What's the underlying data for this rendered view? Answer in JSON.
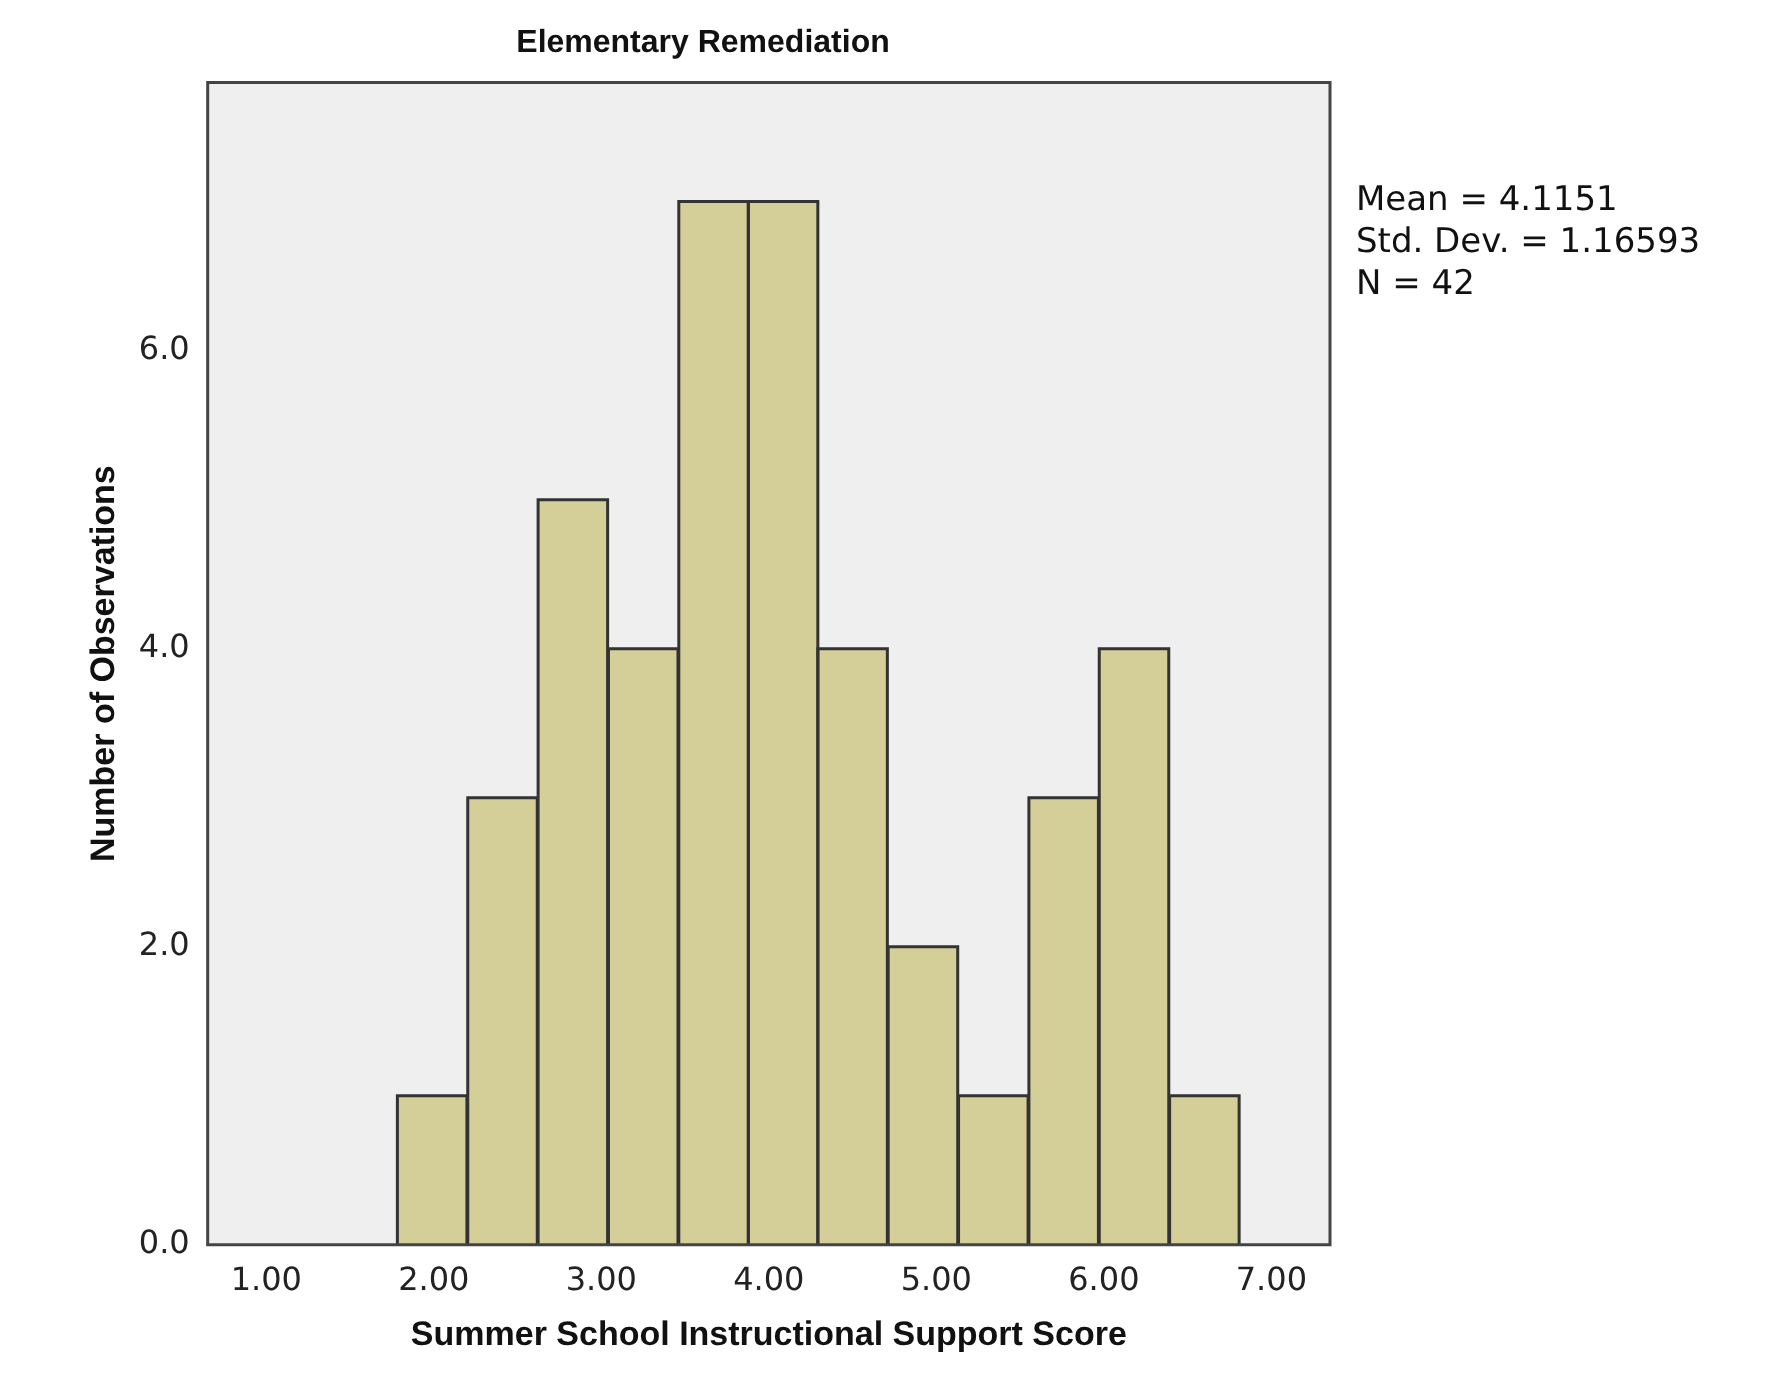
{
  "chart_data": {
    "type": "histogram",
    "title": "Elementary Remediation",
    "xlabel": "Summer School Instructional Support Score",
    "ylabel": "Number of Observations",
    "bins": [
      1.78,
      2.2,
      2.62,
      3.04,
      3.46,
      3.88,
      4.29,
      4.71,
      5.13,
      5.55,
      5.97,
      6.39,
      6.81
    ],
    "values": [
      1,
      3,
      5,
      4,
      7,
      7,
      4,
      2,
      1,
      3,
      4,
      1
    ],
    "color": "#d4cf99",
    "xlim": [
      0.65,
      7.35
    ],
    "xticks": [
      {
        "value": 1,
        "label": "1.00"
      },
      {
        "value": 2,
        "label": "2.00"
      },
      {
        "value": 3,
        "label": "3.00"
      },
      {
        "value": 4,
        "label": "4.00"
      },
      {
        "value": 5,
        "label": "5.00"
      },
      {
        "value": 6,
        "label": "6.00"
      },
      {
        "value": 7,
        "label": "7.00"
      }
    ],
    "ylim": [
      0,
      7.8
    ],
    "yticks": [
      {
        "value": 0,
        "label": "0.0"
      },
      {
        "value": 2,
        "label": "2.0"
      },
      {
        "value": 4,
        "label": "4.0"
      },
      {
        "value": 6,
        "label": "6.0"
      }
    ],
    "grid": false,
    "legend": false,
    "annotations": [
      "Mean = 4.1151",
      "Std. Dev. = 1.16593",
      "N = 42"
    ]
  }
}
